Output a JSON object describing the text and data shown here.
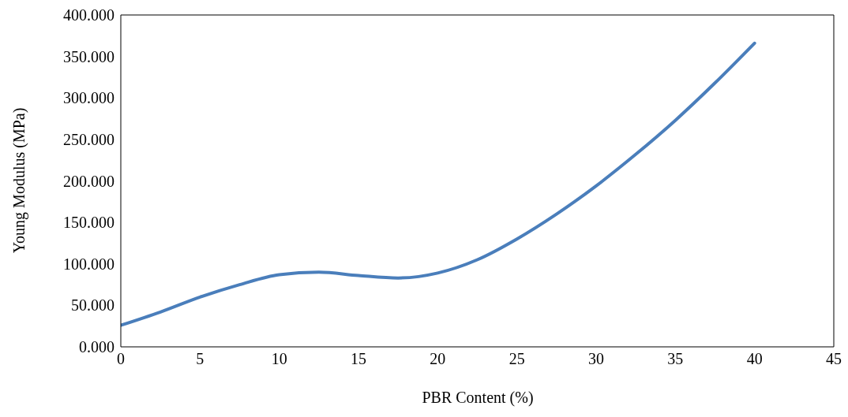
{
  "chart_data": {
    "type": "line",
    "xlabel": "PBR Content (%)",
    "ylabel": "Young Modulus (MPa)",
    "x": [
      0,
      2.5,
      5,
      7.5,
      10,
      12.5,
      15,
      17.5,
      20,
      22.5,
      25,
      27.5,
      30,
      32.5,
      35,
      37.5,
      40
    ],
    "series": [
      {
        "color": "#4a7ebb",
        "values": [
          26,
          42,
          60,
          75,
          87,
          90,
          86,
          83,
          89,
          105,
          130,
          160,
          194,
          232,
          273,
          318,
          366
        ]
      }
    ],
    "xlim": [
      0,
      45
    ],
    "xticks": [
      0,
      5,
      10,
      15,
      20,
      25,
      30,
      35,
      40,
      45
    ],
    "ylim": [
      0,
      400
    ],
    "yticks": [
      {
        "value": 0,
        "label": "0.000"
      },
      {
        "value": 50,
        "label": "50.000"
      },
      {
        "value": 100,
        "label": "100.000"
      },
      {
        "value": 150,
        "label": "150.000"
      },
      {
        "value": 200,
        "label": "200.000"
      },
      {
        "value": 250,
        "label": "250.000"
      },
      {
        "value": 300,
        "label": "300.000"
      },
      {
        "value": 350,
        "label": "350.000"
      },
      {
        "value": 400,
        "label": "400.000"
      }
    ],
    "grid": false,
    "legend": false,
    "marker": "none",
    "line_style": "solid"
  }
}
